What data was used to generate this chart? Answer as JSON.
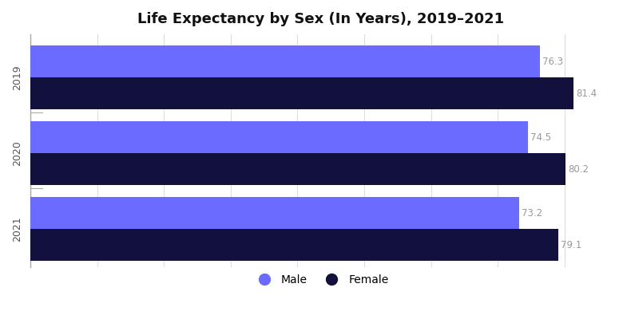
{
  "title": "Life Expectancy by Sex (In Years), 2019–2021",
  "years": [
    "2019",
    "2020",
    "2021"
  ],
  "male_values": [
    76.3,
    74.5,
    73.2
  ],
  "female_values": [
    81.4,
    80.2,
    79.1
  ],
  "male_color": "#6B6BFF",
  "female_color": "#12103C",
  "background_color": "#ffffff",
  "bar_height": 0.42,
  "xlim": [
    0,
    87
  ],
  "label_color": "#999999",
  "label_fontsize": 8.5,
  "title_fontsize": 13,
  "tick_label_fontsize": 9,
  "grid_color": "#dddddd",
  "legend_male": "Male",
  "legend_female": "Female",
  "axis_label_color": "#555555"
}
